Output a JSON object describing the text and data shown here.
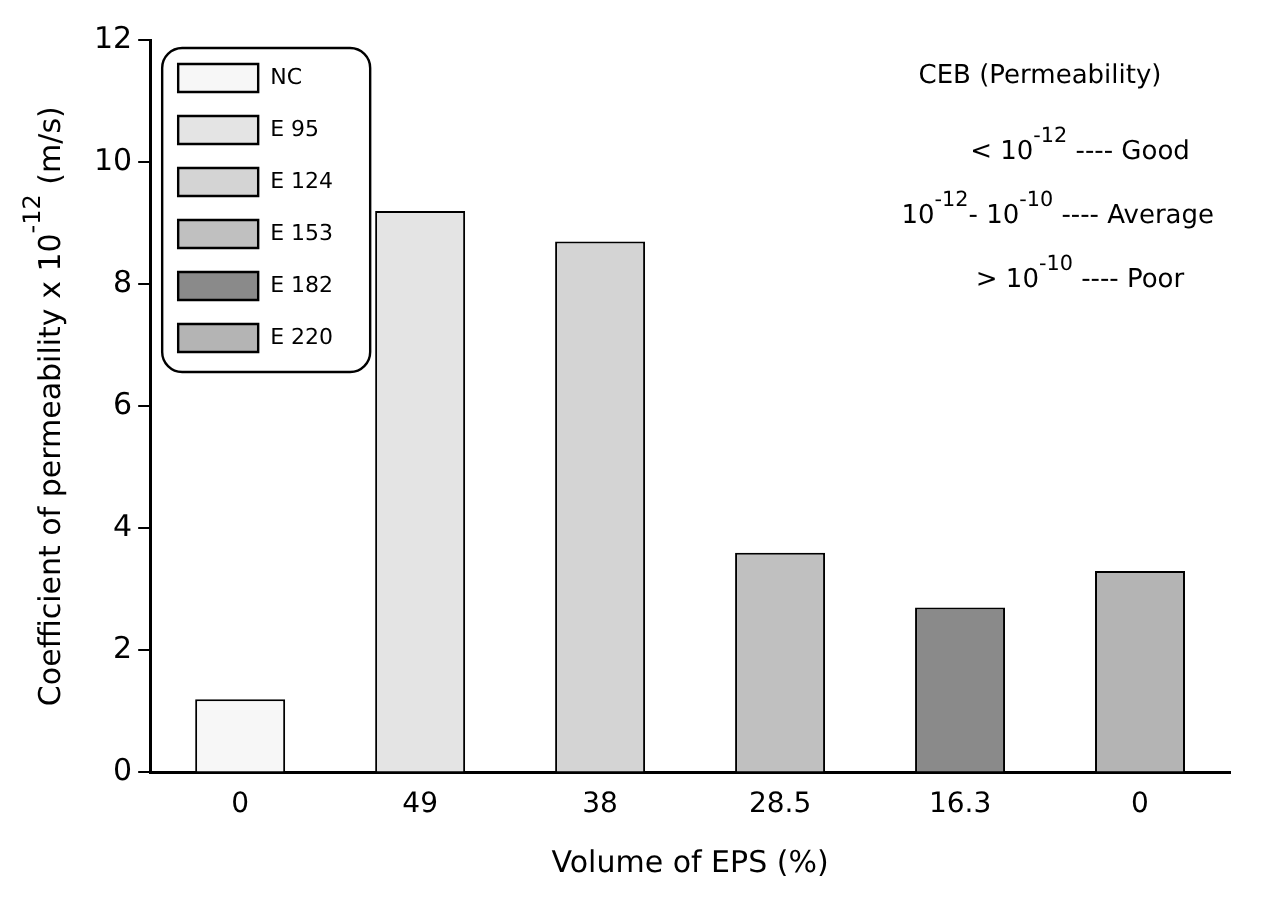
{
  "chart_data": {
    "type": "bar",
    "xlabel": "Volume of EPS (%)",
    "ylabel": "Coefficient of permeability x 10$^{-12}$ (m/s)",
    "categories": [
      "0",
      "49",
      "38",
      "28.5",
      "16.3",
      "0"
    ],
    "series": [
      {
        "name": "NC",
        "color": "#f7f7f7",
        "values": [
          1.2,
          null,
          null,
          null,
          null,
          null
        ]
      },
      {
        "name": "E 95",
        "color": "#e4e4e4",
        "values": [
          null,
          9.2,
          null,
          null,
          null,
          null
        ]
      },
      {
        "name": "E 124",
        "color": "#d4d4d4",
        "values": [
          null,
          null,
          8.7,
          null,
          null,
          null
        ]
      },
      {
        "name": "E 153",
        "color": "#c0c0c0",
        "values": [
          null,
          null,
          null,
          3.6,
          null,
          null
        ]
      },
      {
        "name": "E 182",
        "color": "#8a8a8a",
        "values": [
          null,
          null,
          null,
          null,
          2.7,
          null
        ]
      },
      {
        "name": "E 220",
        "color": "#b4b4b4",
        "values": [
          null,
          null,
          null,
          null,
          null,
          3.3
        ]
      }
    ],
    "ylim": [
      0,
      12
    ],
    "yticks": [
      0,
      2,
      4,
      6,
      8,
      10,
      12
    ],
    "grid": false,
    "legend": "top left",
    "annotations": [
      "CEB (Permeability)",
      "< 10$^{-12}$ ---- Good",
      "10$^{-12}$- 10$^{-10}$ ---- Average",
      "> 10$^{-10}$ ---- Poor"
    ]
  }
}
